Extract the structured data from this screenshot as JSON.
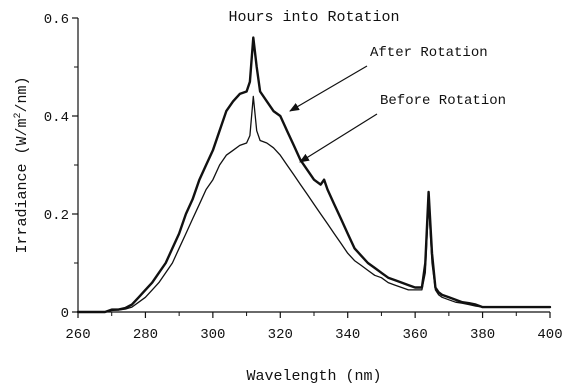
{
  "chart_data": {
    "type": "line",
    "title": "Hours into Rotation",
    "xlabel": "Wavelength (nm)",
    "ylabel_parts": [
      "Irradiance (W/m",
      "2",
      "/nm)"
    ],
    "xlim": [
      260,
      400
    ],
    "ylim": [
      0,
      0.6
    ],
    "x_ticks": [
      260,
      280,
      300,
      320,
      340,
      360,
      380,
      400
    ],
    "y_ticks": [
      {
        "value": 0,
        "label": "0"
      },
      {
        "value": 0.2,
        "label": "0.2"
      },
      {
        "value": 0.4,
        "label": "0.4"
      },
      {
        "value": 0.6,
        "label": "0.6"
      }
    ],
    "grid": false,
    "series": [
      {
        "name": "After Rotation",
        "x": [
          260,
          265,
          268,
          270,
          272,
          274,
          276,
          278,
          280,
          282,
          284,
          286,
          288,
          290,
          292,
          294,
          296,
          298,
          300,
          302,
          304,
          306,
          308,
          310,
          311,
          312,
          313,
          314,
          316,
          318,
          320,
          322,
          324,
          326,
          328,
          330,
          332,
          333,
          334,
          336,
          338,
          340,
          342,
          344,
          346,
          348,
          350,
          352,
          354,
          356,
          358,
          360,
          361,
          362,
          363,
          364,
          365,
          366,
          367,
          368,
          370,
          372,
          374,
          376,
          378,
          380,
          385,
          390,
          395,
          400
        ],
        "y": [
          0,
          0,
          0,
          0.005,
          0.005,
          0.008,
          0.015,
          0.03,
          0.045,
          0.06,
          0.08,
          0.1,
          0.13,
          0.16,
          0.2,
          0.23,
          0.27,
          0.3,
          0.33,
          0.37,
          0.41,
          0.43,
          0.445,
          0.45,
          0.47,
          0.56,
          0.5,
          0.45,
          0.43,
          0.41,
          0.4,
          0.37,
          0.34,
          0.31,
          0.29,
          0.27,
          0.26,
          0.27,
          0.25,
          0.22,
          0.19,
          0.16,
          0.13,
          0.115,
          0.1,
          0.09,
          0.08,
          0.07,
          0.065,
          0.06,
          0.055,
          0.05,
          0.05,
          0.05,
          0.1,
          0.245,
          0.12,
          0.05,
          0.04,
          0.035,
          0.03,
          0.025,
          0.02,
          0.018,
          0.015,
          0.01,
          0.01,
          0.01,
          0.01,
          0.01
        ],
        "stroke_width": 2.4
      },
      {
        "name": "Before Rotation",
        "x": [
          260,
          265,
          268,
          270,
          272,
          274,
          276,
          278,
          280,
          282,
          284,
          286,
          288,
          290,
          292,
          294,
          296,
          298,
          300,
          302,
          304,
          306,
          308,
          310,
          311,
          312,
          313,
          314,
          316,
          318,
          320,
          322,
          324,
          326,
          328,
          330,
          332,
          334,
          336,
          338,
          340,
          342,
          344,
          346,
          348,
          350,
          352,
          354,
          356,
          358,
          360,
          361,
          362,
          363,
          364,
          365,
          366,
          367,
          368,
          370,
          372,
          374,
          376,
          378,
          380,
          385,
          390,
          395,
          400
        ],
        "y": [
          0,
          0,
          0,
          0.003,
          0.004,
          0.006,
          0.01,
          0.02,
          0.03,
          0.045,
          0.06,
          0.08,
          0.1,
          0.13,
          0.16,
          0.19,
          0.22,
          0.25,
          0.27,
          0.3,
          0.32,
          0.33,
          0.34,
          0.345,
          0.36,
          0.44,
          0.37,
          0.35,
          0.345,
          0.335,
          0.32,
          0.3,
          0.28,
          0.26,
          0.24,
          0.22,
          0.2,
          0.18,
          0.16,
          0.14,
          0.12,
          0.105,
          0.095,
          0.085,
          0.075,
          0.07,
          0.06,
          0.055,
          0.05,
          0.045,
          0.045,
          0.045,
          0.045,
          0.08,
          0.22,
          0.1,
          0.045,
          0.035,
          0.03,
          0.025,
          0.02,
          0.018,
          0.015,
          0.012,
          0.01,
          0.01,
          0.01,
          0.01,
          0.01
        ],
        "stroke_width": 1.3
      }
    ],
    "annotations": [
      {
        "text": "After Rotation",
        "series": "After Rotation"
      },
      {
        "text": "Before Rotation",
        "series": "Before Rotation"
      }
    ]
  }
}
